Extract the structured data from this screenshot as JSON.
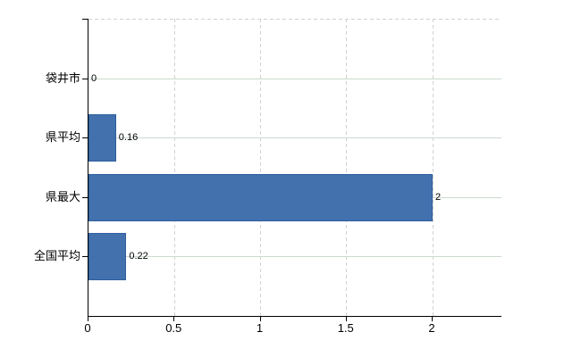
{
  "chart_data": {
    "type": "bar",
    "orientation": "horizontal",
    "title": "",
    "xlabel": "",
    "ylabel": "",
    "categories": [
      "袋井市",
      "県平均",
      "県最大",
      "全国平均"
    ],
    "values": [
      0,
      0.16,
      2,
      0.22
    ],
    "data_labels": [
      "0",
      "0.16",
      "2",
      "0.22"
    ],
    "x_ticks": [
      {
        "value": 0,
        "label": "0"
      },
      {
        "value": 0.5,
        "label": "0.5"
      },
      {
        "value": 1,
        "label": "1"
      },
      {
        "value": 1.5,
        "label": "1.5"
      },
      {
        "value": 2,
        "label": "2"
      }
    ],
    "xlim": [
      0,
      2.4
    ],
    "grid": true,
    "legend": false,
    "colors": {
      "bar": "#4271ad",
      "bar_border": "#30609f",
      "h_gridline": "#cdd9cd",
      "v_gridline": "#d1d1d1",
      "axis": "#000000",
      "text": "#000000",
      "background": "#ffffff"
    }
  }
}
